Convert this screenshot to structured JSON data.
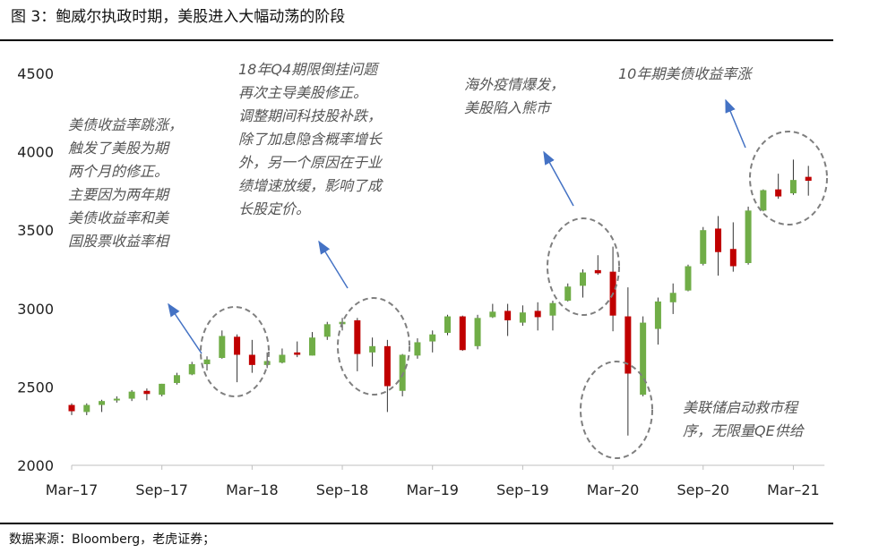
{
  "header": {
    "title": "图 3：鲍威尔执政时期，美股进入大幅动荡的阶段"
  },
  "footer": {
    "source": "数据来源：Bloomberg，老虎证券；"
  },
  "colors": {
    "up": "#70ad47",
    "down": "#c00000",
    "axis": "#bfbfbf",
    "annotation_text": "#555555",
    "arrow": "#4472c4",
    "ellipse": "#7f7f7f"
  },
  "annotations": [
    {
      "id": "note-1",
      "lines": [
        "美债收益率跳涨，",
        "触发了美股为期",
        "两个月的修正。",
        "主要因为两年期",
        "美债收益率和美",
        "国股票收益率相"
      ]
    },
    {
      "id": "note-2",
      "lines": [
        "18年Q4期限倒挂问题",
        "再次主导美股修正。",
        "调整期间科技股补跌，",
        "除了加息隐含概率增长",
        "外，另一个原因在于业",
        "绩增速放缓，影响了成",
        "长股定价。"
      ]
    },
    {
      "id": "note-3",
      "lines": [
        "海外疫情爆发，",
        "美股陷入熊市"
      ]
    },
    {
      "id": "note-4",
      "lines": [
        "10年期美债收益率涨"
      ]
    },
    {
      "id": "note-5",
      "lines": [
        "美联储启动救市程",
        "序，无限量QE供给"
      ]
    }
  ],
  "chart_data": {
    "type": "candlestick",
    "title": "",
    "xlabel": "",
    "ylabel": "",
    "ylim": [
      2000,
      4500
    ],
    "yticks": [
      2000,
      2500,
      3000,
      3500,
      4000,
      4500
    ],
    "xtick_labels": [
      "Mar–17",
      "Sep–17",
      "Mar–18",
      "Sep–18",
      "Mar–19",
      "Sep–19",
      "Mar–20",
      "Sep–20",
      "Mar–21"
    ],
    "xtick_index": [
      0,
      6,
      12,
      18,
      24,
      30,
      36,
      42,
      48
    ],
    "frequency": "monthly",
    "legend": "none",
    "grid": false,
    "candles": [
      {
        "o": 2385,
        "h": 2395,
        "l": 2320,
        "c": 2345
      },
      {
        "o": 2340,
        "h": 2395,
        "l": 2320,
        "c": 2385
      },
      {
        "o": 2385,
        "h": 2418,
        "l": 2340,
        "c": 2410
      },
      {
        "o": 2415,
        "h": 2440,
        "l": 2400,
        "c": 2425
      },
      {
        "o": 2425,
        "h": 2480,
        "l": 2410,
        "c": 2470
      },
      {
        "o": 2475,
        "h": 2490,
        "l": 2415,
        "c": 2455
      },
      {
        "o": 2450,
        "h": 2520,
        "l": 2440,
        "c": 2520
      },
      {
        "o": 2525,
        "h": 2590,
        "l": 2515,
        "c": 2575
      },
      {
        "o": 2580,
        "h": 2660,
        "l": 2575,
        "c": 2645
      },
      {
        "o": 2645,
        "h": 2695,
        "l": 2605,
        "c": 2675
      },
      {
        "o": 2685,
        "h": 2860,
        "l": 2680,
        "c": 2825
      },
      {
        "o": 2820,
        "h": 2835,
        "l": 2530,
        "c": 2705
      },
      {
        "o": 2705,
        "h": 2800,
        "l": 2590,
        "c": 2640
      },
      {
        "o": 2640,
        "h": 2720,
        "l": 2620,
        "c": 2665
      },
      {
        "o": 2655,
        "h": 2745,
        "l": 2650,
        "c": 2705
      },
      {
        "o": 2720,
        "h": 2790,
        "l": 2690,
        "c": 2705
      },
      {
        "o": 2700,
        "h": 2850,
        "l": 2700,
        "c": 2815
      },
      {
        "o": 2820,
        "h": 2915,
        "l": 2800,
        "c": 2900
      },
      {
        "o": 2900,
        "h": 2940,
        "l": 2860,
        "c": 2915
      },
      {
        "o": 2925,
        "h": 2940,
        "l": 2600,
        "c": 2710
      },
      {
        "o": 2720,
        "h": 2815,
        "l": 2630,
        "c": 2760
      },
      {
        "o": 2760,
        "h": 2800,
        "l": 2340,
        "c": 2505
      },
      {
        "o": 2475,
        "h": 2710,
        "l": 2440,
        "c": 2705
      },
      {
        "o": 2700,
        "h": 2810,
        "l": 2680,
        "c": 2785
      },
      {
        "o": 2790,
        "h": 2860,
        "l": 2720,
        "c": 2835
      },
      {
        "o": 2845,
        "h": 2960,
        "l": 2830,
        "c": 2950
      },
      {
        "o": 2950,
        "h": 2955,
        "l": 2730,
        "c": 2735
      },
      {
        "o": 2760,
        "h": 2960,
        "l": 2740,
        "c": 2940
      },
      {
        "o": 2945,
        "h": 3030,
        "l": 2940,
        "c": 2980
      },
      {
        "o": 2985,
        "h": 3030,
        "l": 2825,
        "c": 2925
      },
      {
        "o": 2910,
        "h": 3020,
        "l": 2890,
        "c": 2975
      },
      {
        "o": 2985,
        "h": 3040,
        "l": 2860,
        "c": 2945
      },
      {
        "o": 2955,
        "h": 3050,
        "l": 2860,
        "c": 3035
      },
      {
        "o": 3050,
        "h": 3160,
        "l": 3045,
        "c": 3140
      },
      {
        "o": 3145,
        "h": 3250,
        "l": 3070,
        "c": 3230
      },
      {
        "o": 3245,
        "h": 3340,
        "l": 3215,
        "c": 3225
      },
      {
        "o": 3235,
        "h": 3395,
        "l": 2855,
        "c": 2955
      },
      {
        "o": 2950,
        "h": 3135,
        "l": 2190,
        "c": 2585
      },
      {
        "o": 2450,
        "h": 2950,
        "l": 2440,
        "c": 2910
      },
      {
        "o": 2870,
        "h": 3070,
        "l": 2770,
        "c": 3045
      },
      {
        "o": 3040,
        "h": 3160,
        "l": 2965,
        "c": 3100
      },
      {
        "o": 3115,
        "h": 3280,
        "l": 3110,
        "c": 3270
      },
      {
        "o": 3285,
        "h": 3520,
        "l": 3275,
        "c": 3500
      },
      {
        "o": 3510,
        "h": 3590,
        "l": 3210,
        "c": 3360
      },
      {
        "o": 3380,
        "h": 3550,
        "l": 3235,
        "c": 3270
      },
      {
        "o": 3290,
        "h": 3650,
        "l": 3280,
        "c": 3625
      },
      {
        "o": 3625,
        "h": 3760,
        "l": 3620,
        "c": 3755
      },
      {
        "o": 3760,
        "h": 3860,
        "l": 3700,
        "c": 3715
      },
      {
        "o": 3735,
        "h": 3950,
        "l": 3725,
        "c": 3820
      },
      {
        "o": 3840,
        "h": 3910,
        "l": 3720,
        "c": 3815
      }
    ]
  }
}
